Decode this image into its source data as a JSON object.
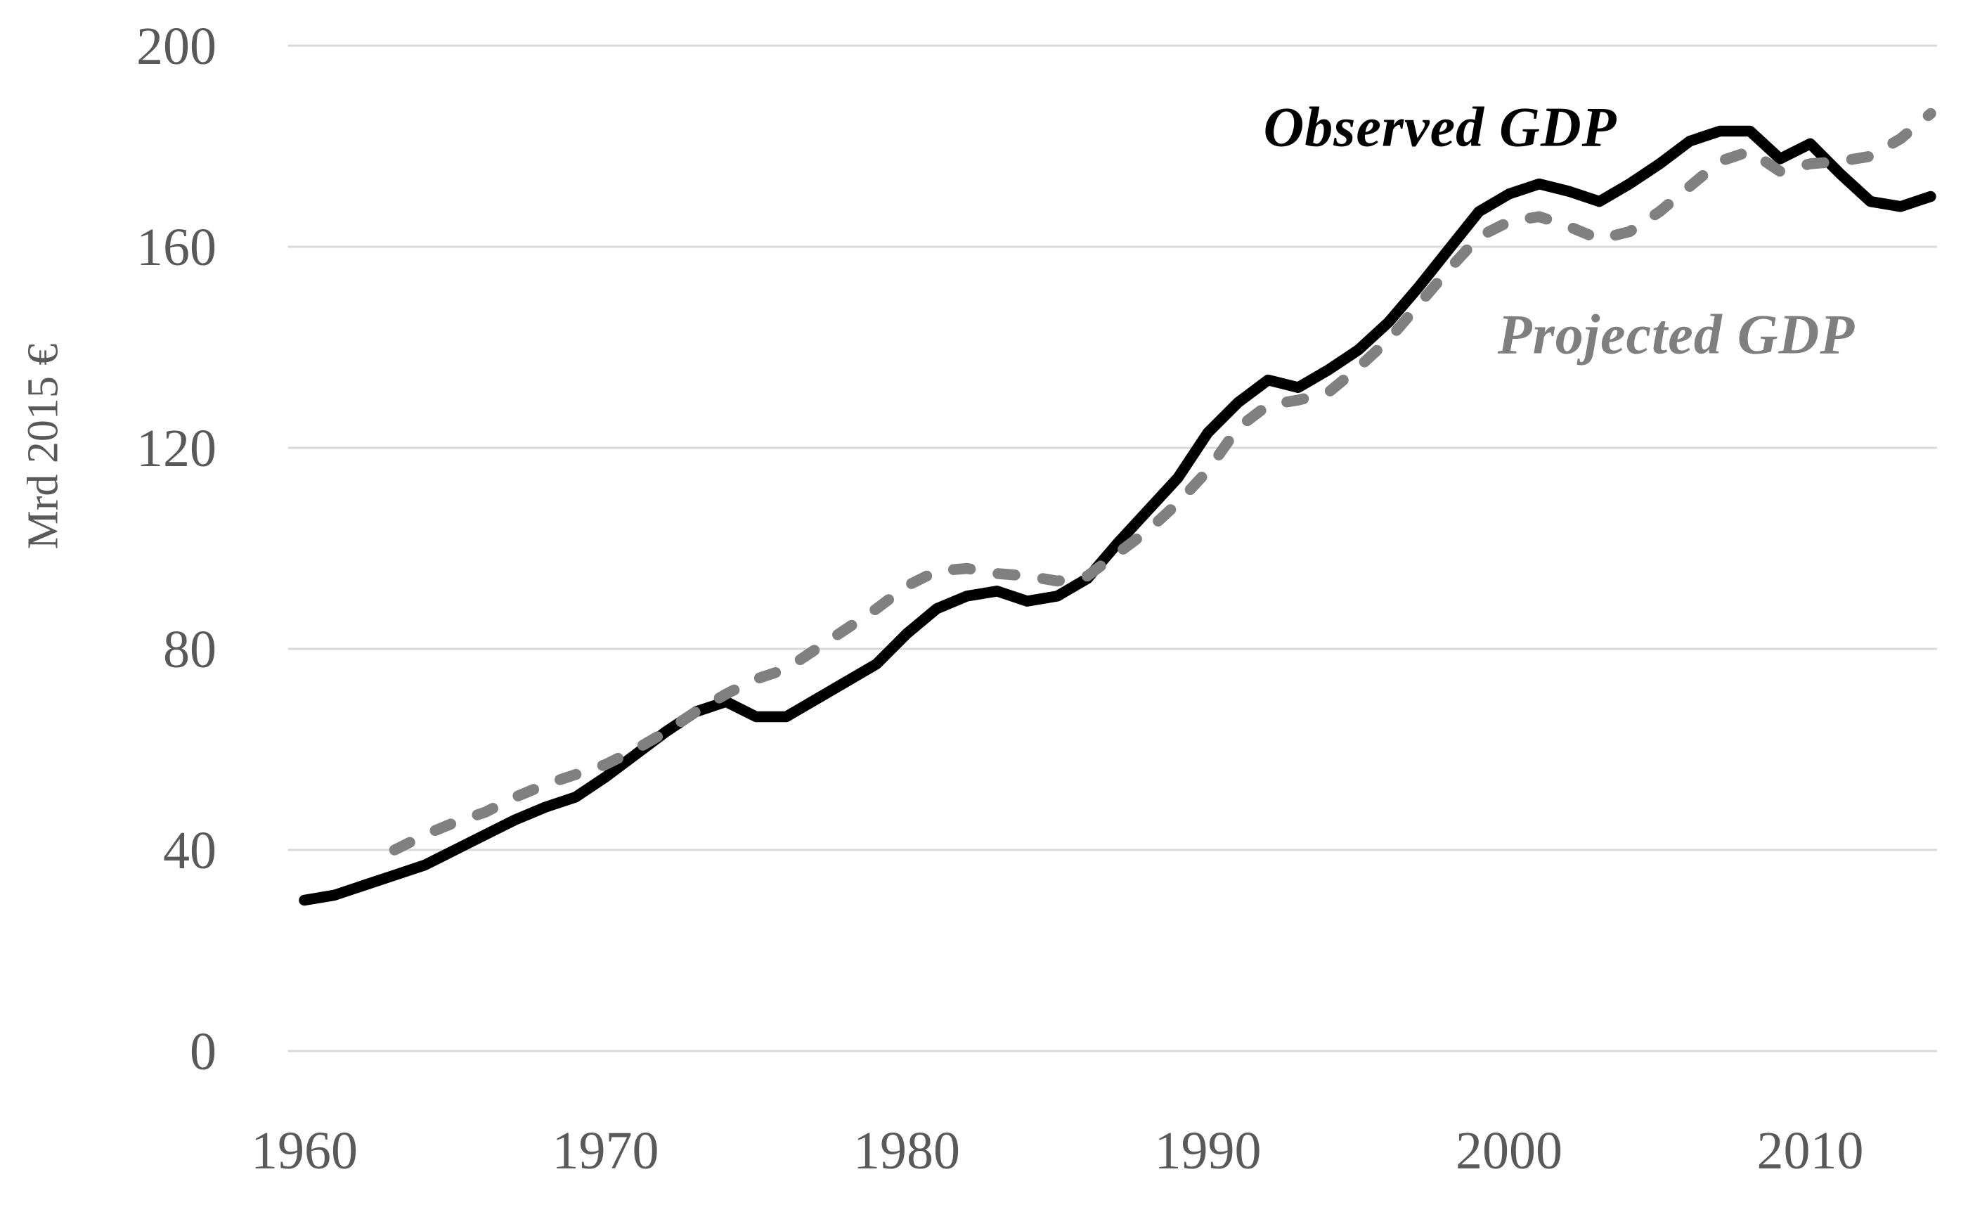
{
  "chart_data": {
    "type": "line",
    "title": "",
    "xlabel": "",
    "ylabel": "Mrd 2015 €",
    "x_ticks": [
      1960,
      1970,
      1980,
      1990,
      2000,
      2010
    ],
    "y_ticks": [
      0,
      40,
      80,
      120,
      160,
      200
    ],
    "xlim": [
      1959.5,
      2015
    ],
    "ylim": [
      0,
      200
    ],
    "grid": "horizontal-only",
    "legend_position": "inline-labels-near-lines",
    "series": [
      {
        "name": "Observed GDP",
        "style": "solid",
        "color": "#000000",
        "start_year": 1960,
        "end_year": 2014,
        "values": [
          30,
          31,
          33,
          35,
          37,
          40,
          43,
          46,
          48.5,
          50.5,
          54.5,
          59,
          63.5,
          67.5,
          69.5,
          66.5,
          66.5,
          70,
          73.5,
          77,
          83,
          88,
          90.5,
          91.5,
          89.5,
          90.5,
          94,
          101,
          107.5,
          114,
          123,
          129,
          133.5,
          132,
          135.5,
          139.5,
          145,
          152,
          159.5,
          167,
          170.5,
          172.5,
          171,
          169,
          172.5,
          176.5,
          181,
          183,
          183,
          177.5,
          180.5,
          174.5,
          169,
          168,
          170
        ]
      },
      {
        "name": "Projected GDP",
        "style": "dashed",
        "color": "#808080",
        "start_year": 1963,
        "end_year": 2014,
        "values": [
          40,
          43,
          45.5,
          47.5,
          50.5,
          53,
          55,
          57,
          60,
          63.5,
          67.5,
          71,
          74,
          76,
          80,
          84,
          88,
          92.5,
          95.5,
          96,
          95,
          94.5,
          93.5,
          94.5,
          99,
          103.5,
          109,
          115.5,
          124,
          128.5,
          129.5,
          131,
          136,
          141.5,
          148.5,
          155.5,
          162,
          165,
          166,
          164,
          161.5,
          163,
          167,
          172,
          177,
          179,
          175,
          176.5,
          177,
          178,
          181.5,
          186.5
        ]
      }
    ]
  },
  "colors": {
    "observed_line": "#000000",
    "projected_line": "#808080",
    "gridline": "#d9d9d9",
    "tick_text": "#595959",
    "background": "#ffffff"
  }
}
